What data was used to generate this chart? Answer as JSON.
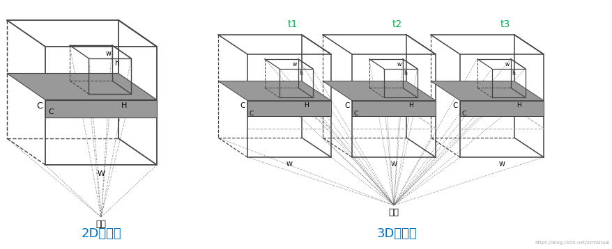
{
  "bg_color": "#ffffff",
  "title_2d": "2D卷积核",
  "title_3d": "3D卷积核",
  "label_t1": "t1",
  "label_t2": "t2",
  "label_t3": "t3",
  "label_output": "输出",
  "label_C_big": "C",
  "label_C_small": "C",
  "label_H": "H",
  "label_W": "W",
  "label_w": "w",
  "label_h": "h",
  "watermark": "https://blog.csdn.net/zzmshuai",
  "title_color": "#0070c0",
  "t_label_color": "#00b050",
  "box_color": "#444444",
  "gray_bar_color": "#999999"
}
